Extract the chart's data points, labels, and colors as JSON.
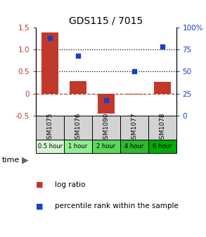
{
  "title": "GDS115 / 7015",
  "samples": [
    "GSM1075",
    "GSM1076",
    "GSM1090",
    "GSM1077",
    "GSM1078"
  ],
  "time_labels": [
    "0.5 hour",
    "1 hour",
    "2 hour",
    "4 hour",
    "6 hour"
  ],
  "log_ratio": [
    1.38,
    0.28,
    -0.45,
    -0.02,
    0.27
  ],
  "percentile": [
    88,
    68,
    18,
    50,
    78
  ],
  "bar_color": "#c0392b",
  "dot_color": "#1a3fcc",
  "left_ylim": [
    -0.5,
    1.5
  ],
  "right_ylim": [
    0,
    100
  ],
  "left_yticks": [
    -0.5,
    0,
    0.5,
    1.0,
    1.5
  ],
  "right_yticks": [
    0,
    25,
    50,
    75,
    100
  ],
  "dotted_lines": [
    0.5,
    1.0
  ],
  "zero_line": 0.0,
  "time_colors": [
    "#d5f5d5",
    "#90ee90",
    "#5cd65c",
    "#2db82d",
    "#00aa00"
  ],
  "sample_bg": "#d3d3d3",
  "background_color": "#ffffff",
  "legend_log_ratio": "log ratio",
  "legend_percentile": "percentile rank within the sample"
}
